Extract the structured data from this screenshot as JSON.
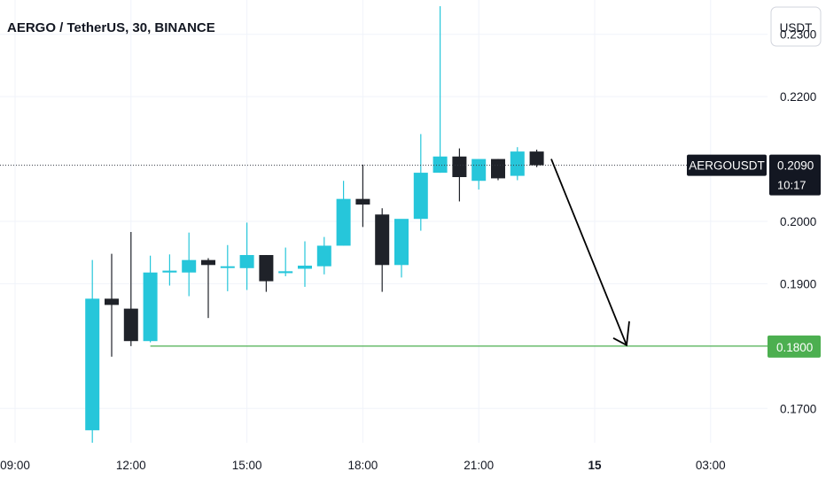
{
  "chart_data": {
    "type": "candlestick",
    "title": "AERGO / TetherUS, 30, BINANCE",
    "currency_button": "USDT",
    "y_ticks": [
      "0.2300",
      "0.2200",
      "0.2000",
      "0.1900",
      "0.1700"
    ],
    "y_tick_values": [
      0.23,
      0.22,
      0.2,
      0.19,
      0.17
    ],
    "ylim": [
      0.1645,
      0.2355
    ],
    "x_tick_labels": [
      {
        "label": "09:00",
        "bold": false,
        "hours": 0
      },
      {
        "label": "12:00",
        "bold": false,
        "hours": 3
      },
      {
        "label": "15:00",
        "bold": false,
        "hours": 6
      },
      {
        "label": "18:00",
        "bold": false,
        "hours": 9
      },
      {
        "label": "21:00",
        "bold": false,
        "hours": 12
      },
      {
        "label": "15",
        "bold": true,
        "hours": 15
      },
      {
        "label": "03:00",
        "bold": false,
        "hours": 18
      }
    ],
    "candles": [
      {
        "o": 0.1665,
        "h": 0.1938,
        "l": 0.1645,
        "c": 0.1876
      },
      {
        "o": 0.1876,
        "h": 0.1948,
        "l": 0.1783,
        "c": 0.1866
      },
      {
        "o": 0.186,
        "h": 0.1983,
        "l": 0.18,
        "c": 0.1808
      },
      {
        "o": 0.1808,
        "h": 0.1945,
        "l": 0.1806,
        "c": 0.1918
      },
      {
        "o": 0.1918,
        "h": 0.1947,
        "l": 0.1897,
        "c": 0.1921
      },
      {
        "o": 0.1918,
        "h": 0.1982,
        "l": 0.188,
        "c": 0.1938
      },
      {
        "o": 0.1938,
        "h": 0.1941,
        "l": 0.1845,
        "c": 0.193
      },
      {
        "o": 0.1926,
        "h": 0.1962,
        "l": 0.1888,
        "c": 0.1928
      },
      {
        "o": 0.1925,
        "h": 0.1998,
        "l": 0.189,
        "c": 0.1946
      },
      {
        "o": 0.1946,
        "h": 0.1946,
        "l": 0.1887,
        "c": 0.1904
      },
      {
        "o": 0.1917,
        "h": 0.1958,
        "l": 0.1912,
        "c": 0.192
      },
      {
        "o": 0.1924,
        "h": 0.1968,
        "l": 0.1895,
        "c": 0.1929
      },
      {
        "o": 0.1928,
        "h": 0.1975,
        "l": 0.1915,
        "c": 0.1961
      },
      {
        "o": 0.1961,
        "h": 0.2065,
        "l": 0.1961,
        "c": 0.2036
      },
      {
        "o": 0.2036,
        "h": 0.2091,
        "l": 0.1991,
        "c": 0.2027
      },
      {
        "o": 0.2011,
        "h": 0.2021,
        "l": 0.1887,
        "c": 0.193
      },
      {
        "o": 0.193,
        "h": 0.2,
        "l": 0.191,
        "c": 0.2004
      },
      {
        "o": 0.2004,
        "h": 0.214,
        "l": 0.1985,
        "c": 0.2078
      },
      {
        "o": 0.2078,
        "h": 0.2345,
        "l": 0.2078,
        "c": 0.2104
      },
      {
        "o": 0.2104,
        "h": 0.2117,
        "l": 0.2032,
        "c": 0.2071
      },
      {
        "o": 0.2065,
        "h": 0.2096,
        "l": 0.2051,
        "c": 0.21
      },
      {
        "o": 0.21,
        "h": 0.21,
        "l": 0.2066,
        "c": 0.2069
      },
      {
        "o": 0.2073,
        "h": 0.2119,
        "l": 0.2066,
        "c": 0.2112
      },
      {
        "o": 0.2112,
        "h": 0.2115,
        "l": 0.2087,
        "c": 0.209
      }
    ],
    "candle_start_hours": 3.0,
    "candle_interval_hours": 0.5,
    "up_color": "#26c6da",
    "down_color": "#1f2229",
    "current_price": {
      "symbol": "AERGOUSDT",
      "value": "0.2090",
      "countdown": "10:17",
      "price": 0.209
    },
    "support_line": {
      "value": "0.1800",
      "price": 0.18,
      "color": "#4caf50"
    },
    "arrow": {
      "from_price": 0.21,
      "to_price": 0.18,
      "from_hours": 15.2,
      "to_hours": 17.2
    }
  }
}
